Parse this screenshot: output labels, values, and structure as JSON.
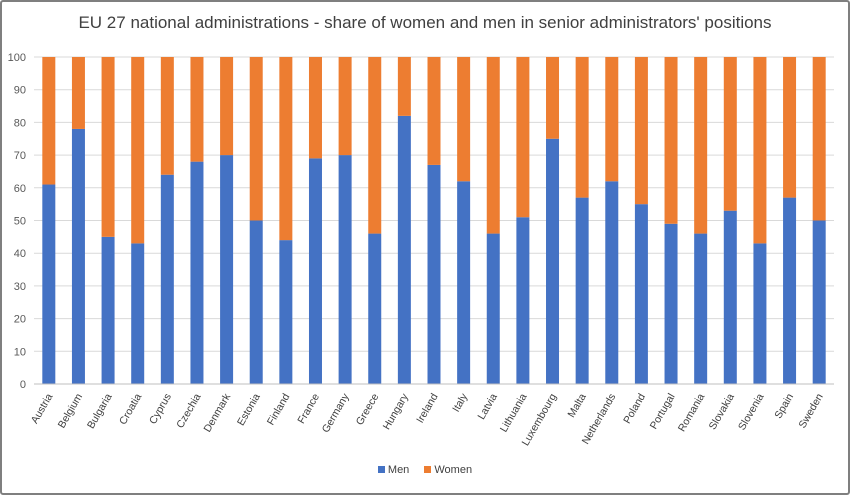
{
  "chart_data": {
    "type": "bar",
    "stacked": true,
    "title": "EU 27 national administrations - share of women and men in senior administrators' positions",
    "xlabel": "",
    "ylabel": "",
    "ylim": [
      0,
      100
    ],
    "yticks": [
      0,
      10,
      20,
      30,
      40,
      50,
      60,
      70,
      80,
      90,
      100
    ],
    "grid": true,
    "legend_position": "bottom",
    "categories": [
      "Austria",
      "Belgium",
      "Bulgaria",
      "Croatia",
      "Cyprus",
      "Czechia",
      "Denmark",
      "Estonia",
      "Finland",
      "France",
      "Germany",
      "Greece",
      "Hungary",
      "Ireland",
      "Italy",
      "Latvia",
      "Lithuania",
      "Luxembourg",
      "Malta",
      "Netherlands",
      "Poland",
      "Portugal",
      "Romania",
      "Slovakia",
      "Slovenia",
      "Spain",
      "Sweden"
    ],
    "series": [
      {
        "name": "Men",
        "color": "#4472c4",
        "values": [
          61,
          78,
          45,
          43,
          64,
          68,
          70,
          50,
          44,
          69,
          70,
          46,
          82,
          67,
          62,
          46,
          51,
          75,
          57,
          62,
          55,
          49,
          46,
          53,
          43,
          57,
          50
        ]
      },
      {
        "name": "Women",
        "color": "#ed7d31",
        "values": [
          39,
          22,
          55,
          57,
          36,
          32,
          30,
          50,
          56,
          31,
          30,
          54,
          18,
          33,
          38,
          54,
          49,
          25,
          43,
          38,
          45,
          51,
          54,
          47,
          57,
          43,
          50
        ]
      }
    ]
  }
}
